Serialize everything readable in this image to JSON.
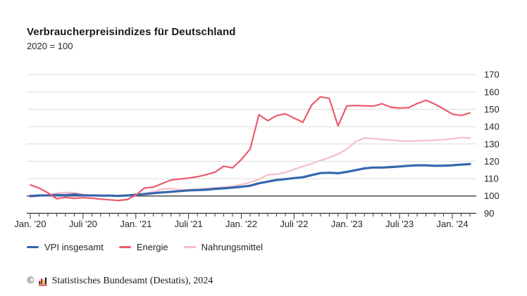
{
  "header": {
    "title": "Verbraucherpreisindizes für Deutschland",
    "subtitle": "2020 = 100"
  },
  "chart_data": {
    "type": "line",
    "title": "Verbraucherpreisindizes für Deutschland",
    "subtitle": "2020 = 100",
    "xlabel": "",
    "ylabel": "",
    "x_start": "2020-01",
    "x_end": "2024-03",
    "frequency": "monthly",
    "n_points": 51,
    "x_major_ticks": [
      {
        "index": 0,
        "label": "Jan. '20"
      },
      {
        "index": 6,
        "label": "Juli '20"
      },
      {
        "index": 12,
        "label": "Jan. '21"
      },
      {
        "index": 18,
        "label": "Juli '21"
      },
      {
        "index": 24,
        "label": "Jan. '22"
      },
      {
        "index": 30,
        "label": "Juli '22"
      },
      {
        "index": 36,
        "label": "Jan. '23"
      },
      {
        "index": 42,
        "label": "Juli '23"
      },
      {
        "index": 48,
        "label": "Jan. '24"
      }
    ],
    "x_minor_ticks_every_month": true,
    "y_ticks": [
      90,
      100,
      110,
      120,
      130,
      140,
      150,
      160,
      170
    ],
    "ylim": [
      90,
      170
    ],
    "baseline_value": 100,
    "grid": true,
    "legend_position": "bottom",
    "colors": {
      "grid": "#dcdcdc",
      "baseline": "#4d4d4d",
      "axis": "#333333",
      "text": "#262626"
    },
    "series": [
      {
        "name": "VPI insgesamt",
        "color": "#3567ad",
        "stroke_width": 3.2,
        "z": 2,
        "values": [
          100.0,
          100.3,
          100.4,
          100.6,
          100.5,
          100.9,
          100.4,
          100.3,
          100.2,
          100.2,
          100.0,
          100.3,
          100.7,
          101.1,
          101.6,
          102.1,
          102.4,
          102.8,
          103.2,
          103.4,
          103.6,
          104.1,
          104.4,
          104.8,
          105.3,
          105.9,
          107.3,
          108.3,
          109.2,
          109.7,
          110.3,
          110.8,
          112.0,
          113.2,
          113.4,
          113.1,
          113.9,
          114.9,
          115.9,
          116.4,
          116.4,
          116.7,
          117.0,
          117.4,
          117.7,
          117.7,
          117.4,
          117.5,
          117.7,
          118.1,
          118.4
        ]
      },
      {
        "name": "Energie",
        "color": "#ec5a6e",
        "stroke_width": 2.2,
        "z": 3,
        "values": [
          106.4,
          104.6,
          101.8,
          98.4,
          99.2,
          98.6,
          99.0,
          98.7,
          98.2,
          97.8,
          97.4,
          97.9,
          100.5,
          104.6,
          105.1,
          107.2,
          109.2,
          109.8,
          110.3,
          111.1,
          112.3,
          113.7,
          117.2,
          116.2,
          121.0,
          127.0,
          146.9,
          143.4,
          146.3,
          147.4,
          144.9,
          142.5,
          152.5,
          157.2,
          156.3,
          140.4,
          151.9,
          152.2,
          152.0,
          151.8,
          153.2,
          151.2,
          150.7,
          150.9,
          153.3,
          155.2,
          153.0,
          150.2,
          147.2,
          146.4,
          147.9
        ]
      },
      {
        "name": "Nahrungsmittel",
        "color": "#f6bdc5",
        "stroke_width": 2.2,
        "z": 1,
        "values": [
          99.3,
          99.8,
          100.7,
          101.6,
          102.0,
          101.9,
          100.9,
          100.3,
          100.0,
          100.1,
          100.3,
          100.5,
          100.8,
          101.3,
          102.4,
          104.0,
          104.3,
          103.5,
          103.6,
          103.9,
          104.3,
          104.7,
          105.1,
          105.6,
          106.6,
          107.8,
          109.6,
          112.2,
          112.5,
          113.6,
          115.4,
          117.0,
          118.6,
          120.5,
          122.1,
          124.2,
          127.0,
          131.3,
          133.4,
          133.1,
          132.6,
          132.2,
          131.8,
          131.6,
          131.8,
          132.0,
          132.2,
          132.5,
          132.9,
          133.7,
          133.3
        ]
      }
    ]
  },
  "footer": {
    "copyright": "©",
    "logo_icon": "destatis-bar-chart-icon",
    "text": "Statistisches Bundesamt (Destatis), 2024"
  }
}
